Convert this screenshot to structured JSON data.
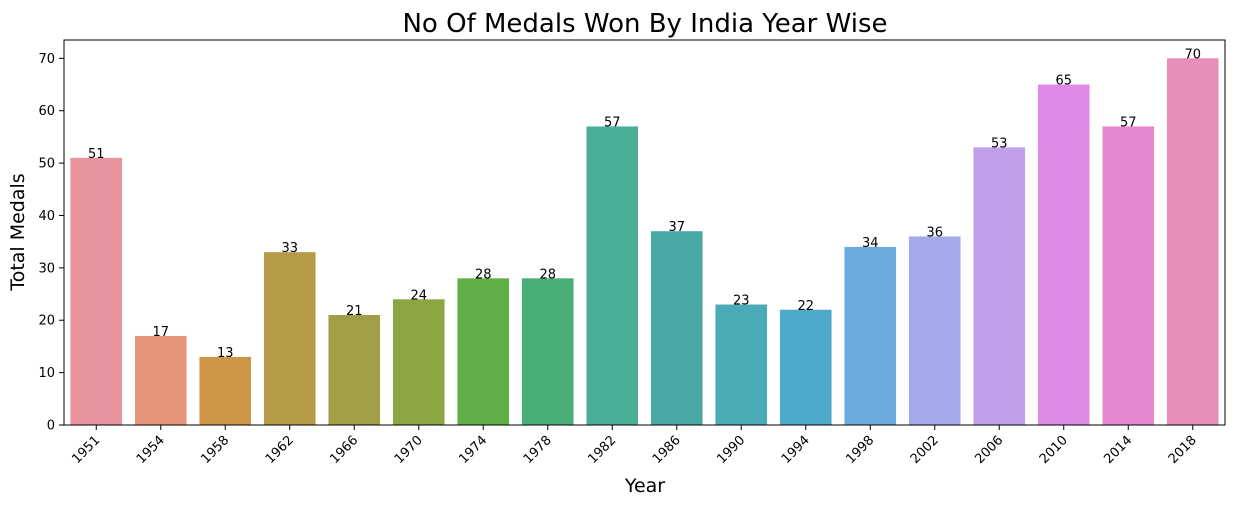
{
  "chart_data": {
    "type": "bar",
    "title": "No Of Medals Won By India Year Wise",
    "xlabel": "Year",
    "ylabel": "Total Medals",
    "categories": [
      "1951",
      "1954",
      "1958",
      "1962",
      "1966",
      "1970",
      "1974",
      "1978",
      "1982",
      "1986",
      "1990",
      "1994",
      "1998",
      "2002",
      "2006",
      "2010",
      "2014",
      "2018"
    ],
    "values": [
      51,
      17,
      13,
      33,
      21,
      24,
      28,
      28,
      57,
      37,
      23,
      22,
      34,
      36,
      53,
      65,
      57,
      70
    ],
    "colors": [
      "#e8949f",
      "#e5967a",
      "#cd9546",
      "#b59b48",
      "#a19f45",
      "#8da644",
      "#61ad46",
      "#4aae79",
      "#4aae99",
      "#4aa9a5",
      "#4aaab5",
      "#4ea9cb",
      "#6aace0",
      "#a4a9ea",
      "#c29fea",
      "#df8ae6",
      "#e687d2",
      "#e88fb9"
    ],
    "ylim": [
      0,
      73.5
    ],
    "yticks": [
      0,
      10,
      20,
      30,
      40,
      50,
      60,
      70
    ],
    "grid": false,
    "legend": "none"
  }
}
